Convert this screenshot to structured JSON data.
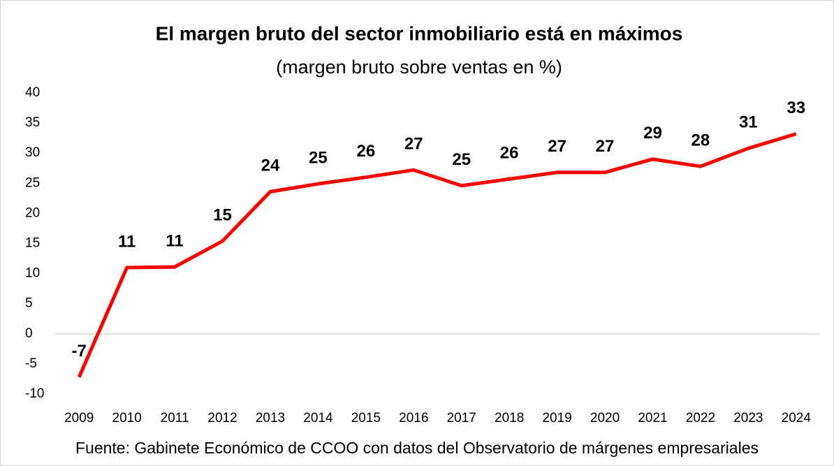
{
  "chart_data": {
    "type": "line",
    "title": "El margen bruto del sector inmobiliario está en máximos",
    "subtitle": "(margen bruto sobre ventas en %)",
    "source": "Fuente: Gabinete Económico de CCOO con datos del Observatorio de márgenes empresariales",
    "categories": [
      "2009",
      "2010",
      "2011",
      "2012",
      "2013",
      "2014",
      "2015",
      "2016",
      "2017",
      "2018",
      "2019",
      "2020",
      "2021",
      "2022",
      "2023",
      "2024"
    ],
    "values": [
      -7.2,
      11.0,
      11.1,
      15.4,
      23.6,
      24.9,
      26.0,
      27.2,
      24.6,
      25.7,
      26.8,
      26.8,
      29.0,
      27.8,
      30.8,
      33.2
    ],
    "value_labels": [
      "-7",
      "11",
      "11",
      "15",
      "24",
      "25",
      "26",
      "27",
      "25",
      "26",
      "27",
      "27",
      "29",
      "28",
      "31",
      "33"
    ],
    "color": "#ff0000",
    "ylim": [
      -10,
      40
    ],
    "yticks": [
      -10,
      -5,
      0,
      5,
      10,
      15,
      20,
      25,
      30,
      35,
      40
    ],
    "grid": false
  }
}
